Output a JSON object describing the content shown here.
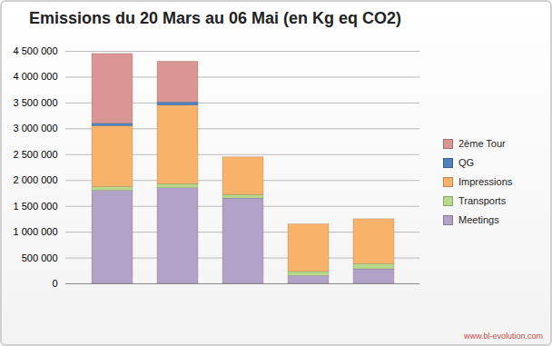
{
  "chart_data": {
    "type": "bar",
    "title": "Emissions du 20 Mars au 06 Mai (en Kg eq CO2)",
    "source": "www.bl-evolution.com",
    "categories": [
      null,
      null,
      null,
      null,
      null
    ],
    "stacked": true,
    "grid": true,
    "legend": "right",
    "series": [
      {
        "name": "Meetings",
        "color": "#b3a2c7",
        "values": [
          1800000,
          1850000,
          1650000,
          150000,
          280000
        ]
      },
      {
        "name": "Transports",
        "color": "#b8d98a",
        "values": [
          70000,
          80000,
          70000,
          80000,
          100000
        ]
      },
      {
        "name": "Impressions",
        "color": "#f9b26a",
        "values": [
          1180000,
          1520000,
          730000,
          920000,
          870000
        ]
      },
      {
        "name": "QG",
        "color": "#4f81bd",
        "values": [
          50000,
          60000,
          0,
          0,
          0
        ]
      },
      {
        "name": "2ème Tour",
        "color": "#d99694",
        "values": [
          1350000,
          790000,
          0,
          0,
          0
        ]
      }
    ],
    "ylim": [
      0,
      4500000
    ],
    "yticks": [
      0,
      {
        "value": 500000,
        "label": "500 000"
      },
      {
        "value": 1000000,
        "label": "1 000 000"
      },
      {
        "value": 1500000,
        "label": "1 500 000"
      },
      {
        "value": 2000000,
        "label": "2 000 000"
      },
      {
        "value": 2500000,
        "label": "2 500 000"
      },
      {
        "value": 3000000,
        "label": "3 000 000"
      },
      {
        "value": 3500000,
        "label": "3 500 000"
      },
      {
        "value": 4000000,
        "label": "4 000 000"
      },
      {
        "value": 4500000,
        "label": "4 500 000"
      }
    ]
  }
}
